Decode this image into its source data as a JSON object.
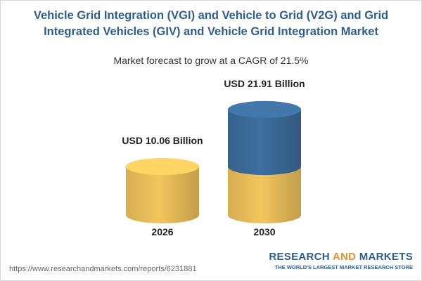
{
  "chart_data": {
    "type": "cylinder",
    "title": "Vehicle Grid Integration (VGI) and Vehicle to Grid (V2G) and Grid Integrated Vehicles (GIV) and Vehicle Grid Integration Market",
    "subtitle": "Market forecast to grow at a CAGR of 21.5%",
    "categories": [
      "2026",
      "2030"
    ],
    "values": [
      10.06,
      21.91
    ],
    "value_labels": [
      "USD 10.06 Billion",
      "USD 21.91 Billion"
    ],
    "colors": [
      "#f3c55c",
      "#3e6f9f"
    ]
  },
  "footer": {
    "url": "https://www.researchandmarkets.com/reports/6231881",
    "logo": {
      "word1": "RESEARCH",
      "word2": "AND",
      "word3": "MARKETS",
      "tagline": "THE WORLD'S LARGEST MARKET RESEARCH STORE"
    }
  }
}
